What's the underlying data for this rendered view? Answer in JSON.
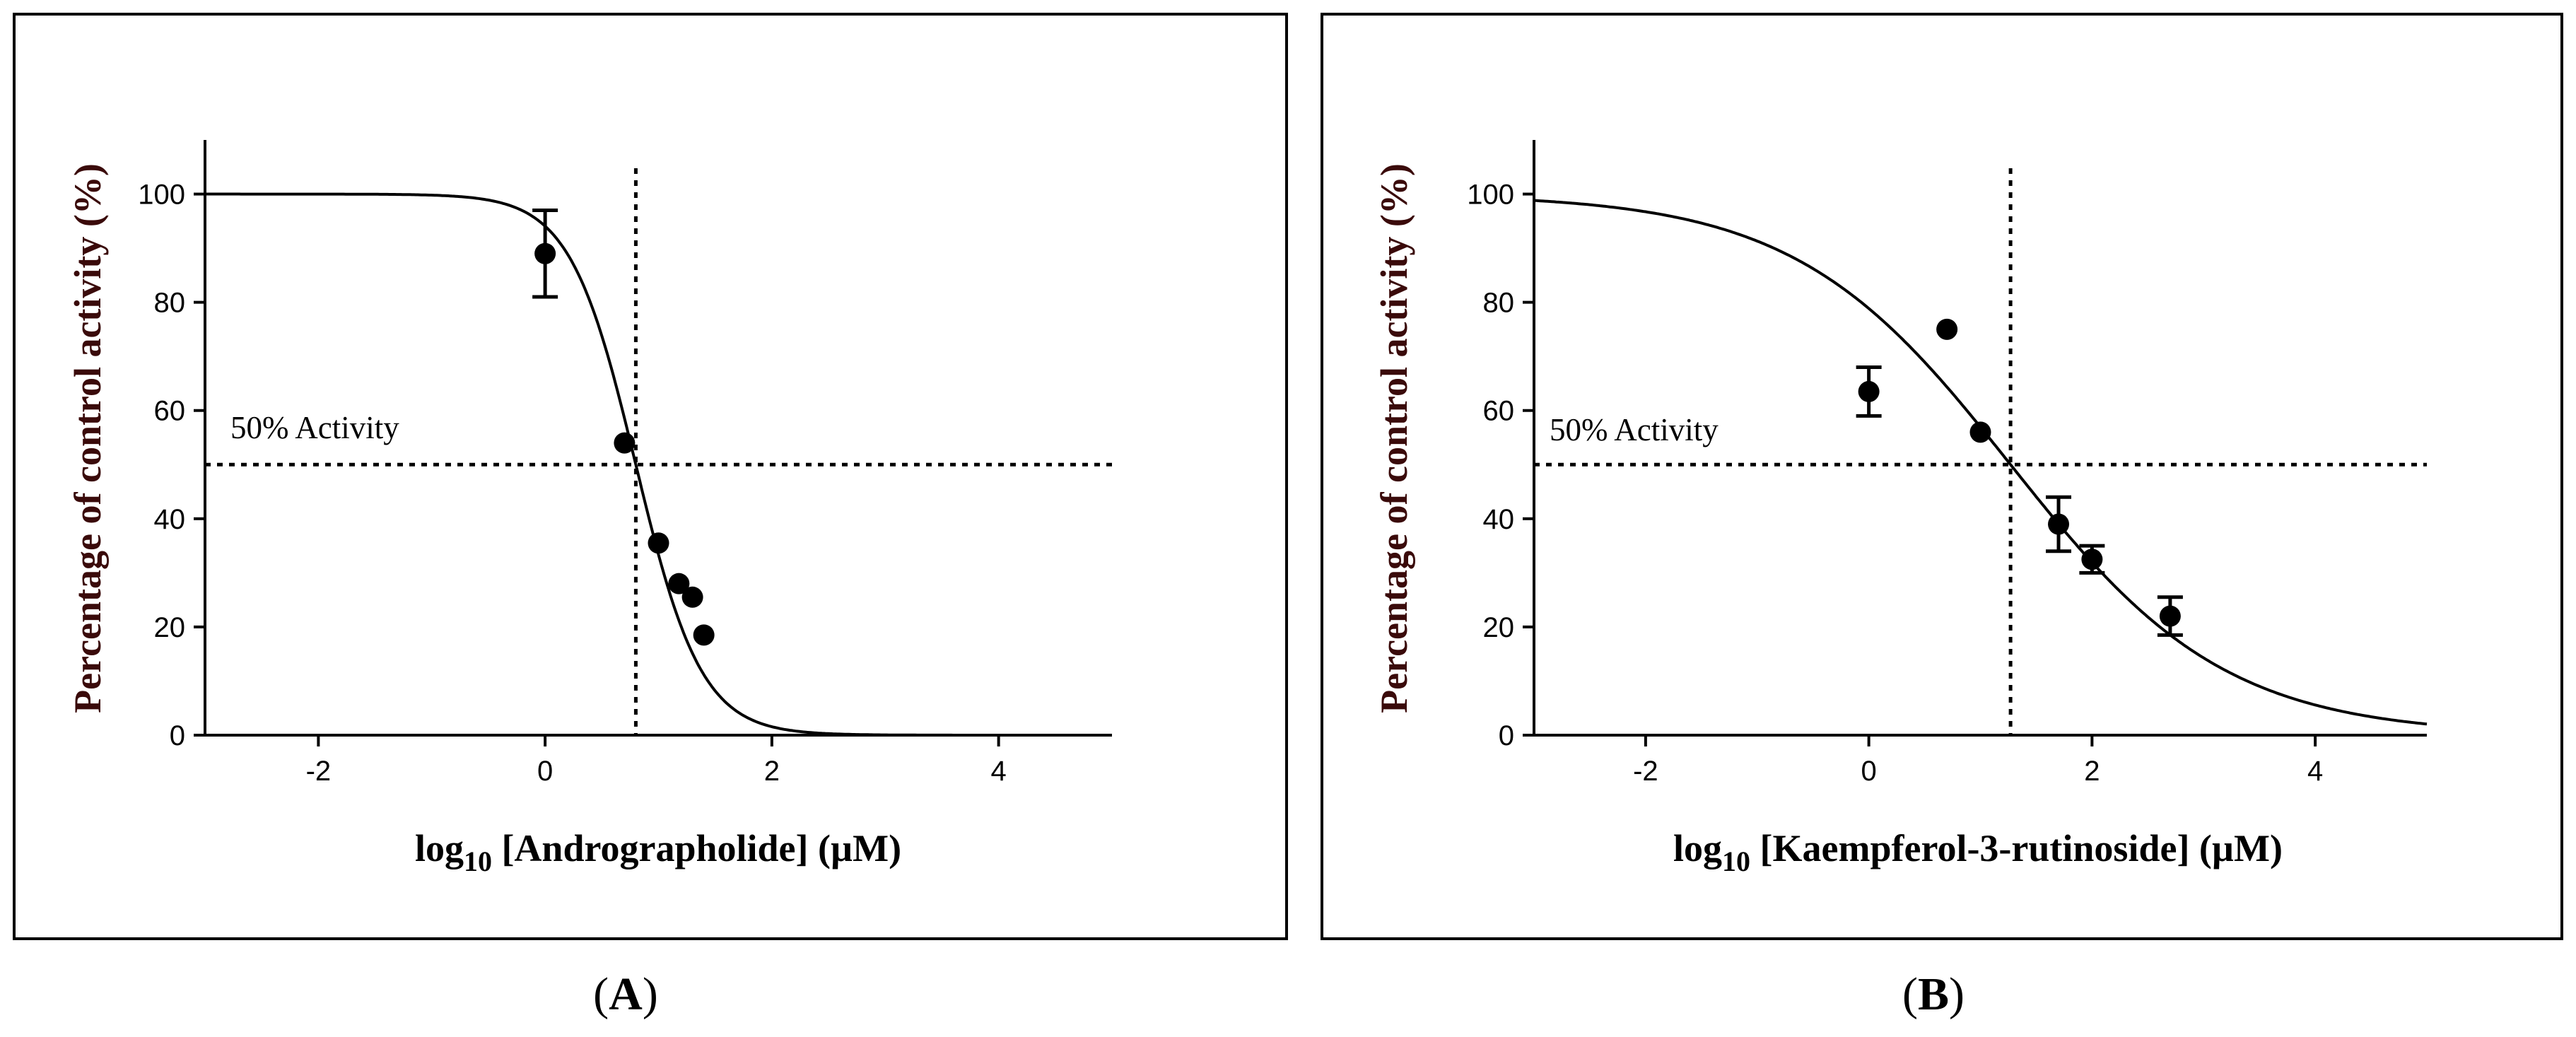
{
  "chart_data": [
    {
      "type": "scatter",
      "panel_label": "A",
      "xlabel_prefix": "log",
      "xlabel_sub": "10",
      "xlabel_rest": " [Andrographolide] (µM)",
      "ylabel": "Percentage of control activity (%)",
      "xlim": [
        -3,
        5
      ],
      "ylim": [
        0,
        110
      ],
      "xticks": [
        -2,
        0,
        2,
        4
      ],
      "yticks": [
        0,
        20,
        40,
        60,
        80,
        100
      ],
      "annotation": "50% Activity",
      "reference_y": 50,
      "reference_x": 0.8,
      "fit": {
        "top": 100,
        "bottom": 0,
        "log_ic50": 0.8,
        "hill_slope": -1.5
      },
      "points": [
        {
          "x": 0.0,
          "y": 89,
          "err": 8
        },
        {
          "x": 0.7,
          "y": 54
        },
        {
          "x": 1.0,
          "y": 35.5
        },
        {
          "x": 1.18,
          "y": 28
        },
        {
          "x": 1.3,
          "y": 25.5
        },
        {
          "x": 1.4,
          "y": 18.5
        }
      ]
    },
    {
      "type": "scatter",
      "panel_label": "B",
      "xlabel_prefix": "log",
      "xlabel_sub": "10",
      "xlabel_rest": " [Kaempferol-3-rutinoside] (µM)",
      "ylabel": "Percentage of control activity (%)",
      "xlim": [
        -3,
        5
      ],
      "ylim": [
        0,
        110
      ],
      "xticks": [
        -2,
        0,
        2,
        4
      ],
      "yticks": [
        0,
        20,
        40,
        60,
        80,
        100
      ],
      "annotation": "50%  Activity",
      "reference_y": 50,
      "reference_x": 1.27,
      "fit": {
        "top": 100,
        "bottom": 0,
        "log_ic50": 1.27,
        "hill_slope": -0.45
      },
      "points": [
        {
          "x": 0.0,
          "y": 63.5,
          "err": 4.5
        },
        {
          "x": 0.7,
          "y": 75
        },
        {
          "x": 1.0,
          "y": 56
        },
        {
          "x": 1.7,
          "y": 39,
          "err": 5
        },
        {
          "x": 2.0,
          "y": 32.5,
          "err": 2.5
        },
        {
          "x": 2.7,
          "y": 22,
          "err": 3.5
        }
      ]
    }
  ]
}
